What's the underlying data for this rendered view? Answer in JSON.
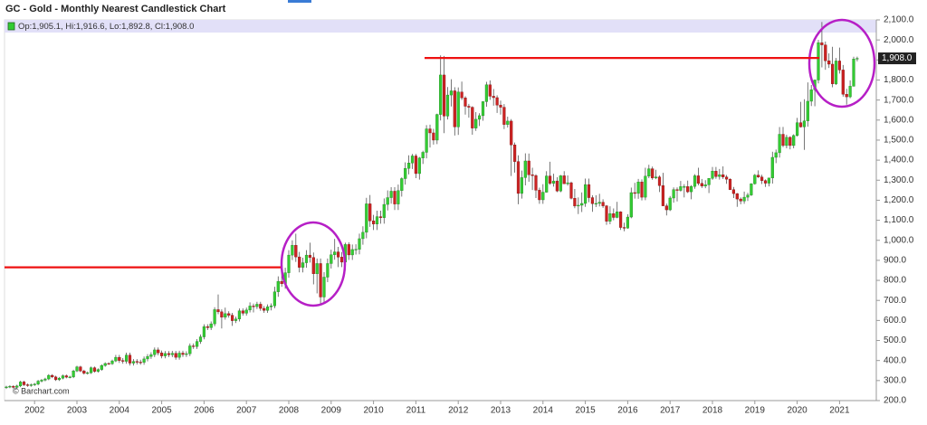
{
  "chart_data": {
    "type": "candlestick",
    "title": "GC - Gold - Monthly Nearest Candlestick Chart",
    "legend_text": "Op:1,905.1, Hi:1,916.6, Lo:1,892.8, Cl:1,908.0",
    "source": "© Barchart.com",
    "up_color": "#33cc33",
    "down_color": "#cc2222",
    "last_price": {
      "value": 1908.0,
      "label": "1,908.0"
    },
    "reference_lines": [
      {
        "value": 865,
        "color": "#ee1111"
      },
      {
        "value": 1910,
        "color": "#ee1111"
      }
    ],
    "ylim": [
      200,
      2100
    ],
    "yticks": [
      {
        "value": 2100,
        "label": "2,100.0"
      },
      {
        "value": 2000,
        "label": "2,000.0"
      },
      {
        "value": 1900,
        "label": "1,900.0"
      },
      {
        "value": 1800,
        "label": "1,800.0"
      },
      {
        "value": 1700,
        "label": "1,700.0"
      },
      {
        "value": 1600,
        "label": "1,600.0"
      },
      {
        "value": 1500,
        "label": "1,500.0"
      },
      {
        "value": 1400,
        "label": "1,400.0"
      },
      {
        "value": 1300,
        "label": "1,300.0"
      },
      {
        "value": 1200,
        "label": "1,200.0"
      },
      {
        "value": 1100,
        "label": "1,100.0"
      },
      {
        "value": 1000,
        "label": "1,000.0"
      },
      {
        "value": 900,
        "label": "900.0"
      },
      {
        "value": 800,
        "label": "800.0"
      },
      {
        "value": 700,
        "label": "700.0"
      },
      {
        "value": 600,
        "label": "600.0"
      },
      {
        "value": 500,
        "label": "500.0"
      },
      {
        "value": 400,
        "label": "400.0"
      },
      {
        "value": 300,
        "label": "300.0"
      },
      {
        "value": 200,
        "label": "200.0"
      }
    ],
    "categories": [
      null,
      null,
      null,
      null,
      null,
      null,
      null,
      null,
      "2002",
      null,
      null,
      null,
      null,
      null,
      null,
      null,
      null,
      null,
      null,
      null,
      "2003",
      null,
      null,
      null,
      null,
      null,
      null,
      null,
      null,
      null,
      null,
      null,
      "2004",
      null,
      null,
      null,
      null,
      null,
      null,
      null,
      null,
      null,
      null,
      null,
      "2005",
      null,
      null,
      null,
      null,
      null,
      null,
      null,
      null,
      null,
      null,
      null,
      "2006",
      null,
      null,
      null,
      null,
      null,
      null,
      null,
      null,
      null,
      null,
      null,
      "2007",
      null,
      null,
      null,
      null,
      null,
      null,
      null,
      null,
      null,
      null,
      null,
      "2008",
      null,
      null,
      null,
      null,
      null,
      null,
      null,
      null,
      null,
      null,
      null,
      "2009",
      null,
      null,
      null,
      null,
      null,
      null,
      null,
      null,
      null,
      null,
      null,
      "2010",
      null,
      null,
      null,
      null,
      null,
      null,
      null,
      null,
      null,
      null,
      null,
      "2011",
      null,
      null,
      null,
      null,
      null,
      null,
      null,
      null,
      null,
      null,
      null,
      "2012",
      null,
      null,
      null,
      null,
      null,
      null,
      null,
      null,
      null,
      null,
      null,
      "2013",
      null,
      null,
      null,
      null,
      null,
      null,
      null,
      null,
      null,
      null,
      null,
      "2014",
      null,
      null,
      null,
      null,
      null,
      null,
      null,
      null,
      null,
      null,
      null,
      "2015",
      null,
      null,
      null,
      null,
      null,
      null,
      null,
      null,
      null,
      null,
      null,
      "2016",
      null,
      null,
      null,
      null,
      null,
      null,
      null,
      null,
      null,
      null,
      null,
      "2017",
      null,
      null,
      null,
      null,
      null,
      null,
      null,
      null,
      null,
      null,
      null,
      "2018",
      null,
      null,
      null,
      null,
      null,
      null,
      null,
      null,
      null,
      null,
      null,
      "2019",
      null,
      null,
      null,
      null,
      null,
      null,
      null,
      null,
      null,
      null,
      null,
      "2020",
      null,
      null,
      null,
      null,
      null,
      null,
      null,
      null,
      null,
      null,
      null,
      "2021",
      null,
      null,
      null,
      null,
      null
    ],
    "open": [
      264,
      268,
      271,
      266,
      273,
      293,
      279,
      275,
      279,
      282,
      297,
      302,
      308,
      326,
      318,
      304,
      312,
      324,
      317,
      318,
      348,
      368,
      348,
      336,
      339,
      364,
      346,
      355,
      375,
      385,
      384,
      398,
      416,
      400,
      396,
      427,
      387,
      395,
      392,
      391,
      408,
      420,
      429,
      453,
      438,
      423,
      435,
      429,
      436,
      416,
      437,
      430,
      434,
      473,
      470,
      495,
      518,
      569,
      564,
      583,
      654,
      643,
      616,
      634,
      626,
      599,
      607,
      648,
      636,
      652,
      672,
      669,
      681,
      660,
      650,
      668,
      673,
      743,
      795,
      783,
      838,
      926,
      975,
      917,
      865,
      888,
      926,
      914,
      833,
      884,
      717,
      816,
      884,
      928,
      942,
      916,
      891,
      979,
      927,
      954,
      955,
      1008,
      1040,
      1182,
      1097,
      1081,
      1118,
      1113,
      1179,
      1213,
      1245,
      1181,
      1248,
      1308,
      1359,
      1386,
      1421,
      1333,
      1411,
      1439,
      1556,
      1536,
      1500,
      1628,
      1825,
      1620,
      1725,
      1746,
      1566,
      1740,
      1711,
      1669,
      1664,
      1560,
      1604,
      1622,
      1692,
      1776,
      1719,
      1712,
      1675,
      1664,
      1578,
      1595,
      1476,
      1393,
      1234,
      1313,
      1396,
      1327,
      1323,
      1250,
      1202,
      1240,
      1321,
      1284,
      1296,
      1246,
      1322,
      1282,
      1287,
      1210,
      1171,
      1175,
      1184,
      1278,
      1213,
      1183,
      1184,
      1190,
      1172,
      1095,
      1133,
      1114,
      1142,
      1064,
      1061,
      1116,
      1238,
      1234,
      1291,
      1215,
      1320,
      1357,
      1311,
      1316,
      1273,
      1172,
      1152,
      1211,
      1253,
      1249,
      1268,
      1268,
      1242,
      1269,
      1322,
      1284,
      1271,
      1277,
      1309,
      1345,
      1318,
      1327,
      1316,
      1305,
      1253,
      1233,
      1206,
      1196,
      1215,
      1226,
      1282,
      1325,
      1316,
      1298,
      1285,
      1311,
      1414,
      1437,
      1529,
      1473,
      1514,
      1473,
      1523,
      1587,
      1566,
      1596,
      1694,
      1751,
      1800,
      1986,
      1975,
      1896,
      1879,
      1781,
      1895,
      1850,
      1729,
      1716,
      1769,
      1905.1
    ],
    "high": [
      274,
      277,
      277,
      279,
      299,
      299,
      285,
      285,
      288,
      303,
      308,
      314,
      332,
      332,
      324,
      318,
      330,
      330,
      324,
      354,
      374,
      374,
      354,
      345,
      370,
      370,
      361,
      381,
      391,
      391,
      404,
      428,
      428,
      412,
      439,
      439,
      407,
      407,
      404,
      420,
      432,
      441,
      465,
      465,
      450,
      447,
      447,
      448,
      448,
      449,
      449,
      446,
      485,
      485,
      507,
      530,
      581,
      581,
      595,
      666,
      730,
      655,
      664,
      646,
      638,
      619,
      660,
      660,
      664,
      690,
      684,
      693,
      693,
      672,
      680,
      685,
      768,
      820,
      845,
      863,
      951,
      1000,
      1033,
      942,
      913,
      951,
      988,
      939,
      909,
      909,
      841,
      909,
      953,
      1007,
      967,
      941,
      988,
      990,
      979,
      980,
      1033,
      1070,
      1212,
      1226,
      1127,
      1148,
      1148,
      1209,
      1249,
      1265,
      1265,
      1278,
      1314,
      1389,
      1424,
      1431,
      1431,
      1416,
      1447,
      1575,
      1577,
      1556,
      1632,
      1923,
      1920,
      1765,
      1804,
      1764,
      1763,
      1792,
      1719,
      1681,
      1669,
      1640,
      1634,
      1694,
      1791,
      1798,
      1755,
      1724,
      1697,
      1680,
      1617,
      1605,
      1488,
      1424,
      1348,
      1434,
      1433,
      1362,
      1330,
      1263,
      1280,
      1345,
      1392,
      1332,
      1315,
      1326,
      1345,
      1324,
      1293,
      1256,
      1214,
      1239,
      1308,
      1308,
      1225,
      1225,
      1232,
      1205,
      1176,
      1170,
      1159,
      1192,
      1145,
      1088,
      1130,
      1263,
      1287,
      1306,
      1304,
      1362,
      1377,
      1368,
      1352,
      1324,
      1337,
      1183,
      1221,
      1264,
      1264,
      1296,
      1280,
      1298,
      1275,
      1330,
      1362,
      1306,
      1300,
      1310,
      1366,
      1366,
      1356,
      1369,
      1326,
      1309,
      1266,
      1236,
      1214,
      1243,
      1237,
      1285,
      1331,
      1349,
      1327,
      1304,
      1312,
      1442,
      1453,
      1565,
      1566,
      1527,
      1519,
      1529,
      1611,
      1691,
      1704,
      1788,
      1775,
      1802,
      2000,
      2089,
      1992,
      1933,
      1966,
      1910,
      1962,
      1875,
      1756,
      1798,
      1916,
      1916.6
    ],
    "low": [
      258,
      262,
      260,
      260,
      267,
      273,
      269,
      269,
      273,
      276,
      291,
      296,
      302,
      312,
      298,
      298,
      306,
      311,
      311,
      312,
      342,
      342,
      330,
      330,
      333,
      340,
      340,
      349,
      369,
      378,
      378,
      392,
      388,
      384,
      384,
      375,
      375,
      380,
      379,
      379,
      396,
      408,
      417,
      426,
      411,
      411,
      417,
      417,
      404,
      404,
      418,
      418,
      422,
      458,
      458,
      483,
      506,
      552,
      552,
      571,
      631,
      560,
      604,
      614,
      573,
      587,
      595,
      624,
      624,
      640,
      640,
      657,
      648,
      638,
      638,
      650,
      661,
      718,
      768,
      758,
      813,
      901,
      892,
      840,
      840,
      863,
      889,
      780,
      735,
      681,
      692,
      791,
      859,
      903,
      866,
      866,
      866,
      902,
      902,
      929,
      930,
      978,
      1010,
      1067,
      1051,
      1051,
      1083,
      1083,
      1149,
      1183,
      1151,
      1151,
      1218,
      1278,
      1329,
      1356,
      1310,
      1303,
      1381,
      1409,
      1463,
      1478,
      1480,
      1598,
      1535,
      1603,
      1668,
      1523,
      1526,
      1700,
      1627,
      1612,
      1527,
      1546,
      1570,
      1597,
      1667,
      1701,
      1672,
      1636,
      1627,
      1555,
      1563,
      1321,
      1338,
      1180,
      1208,
      1274,
      1292,
      1251,
      1211,
      1182,
      1182,
      1238,
      1277,
      1268,
      1240,
      1240,
      1281,
      1273,
      1204,
      1160,
      1131,
      1141,
      1167,
      1190,
      1142,
      1166,
      1169,
      1162,
      1077,
      1080,
      1100,
      1110,
      1052,
      1045,
      1058,
      1110,
      1208,
      1207,
      1199,
      1200,
      1310,
      1302,
      1305,
      1241,
      1171,
      1124,
      1146,
      1188,
      1194,
      1243,
      1214,
      1236,
      1205,
      1257,
      1274,
      1261,
      1260,
      1236,
      1302,
      1307,
      1303,
      1306,
      1282,
      1251,
      1211,
      1167,
      1180,
      1182,
      1196,
      1221,
      1278,
      1311,
      1281,
      1266,
      1269,
      1283,
      1385,
      1413,
      1465,
      1459,
      1454,
      1459,
      1518,
      1563,
      1451,
      1567,
      1670,
      1669,
      1783,
      1863,
      1851,
      1860,
      1764,
      1775,
      1832,
      1717,
      1677,
      1709,
      1767,
      1892.8
    ],
    "close": [
      268,
      271,
      266,
      273,
      293,
      279,
      275,
      279,
      282,
      297,
      302,
      308,
      326,
      318,
      304,
      312,
      324,
      317,
      318,
      348,
      368,
      348,
      336,
      339,
      364,
      346,
      355,
      375,
      385,
      384,
      398,
      416,
      400,
      396,
      427,
      387,
      395,
      392,
      391,
      408,
      420,
      429,
      453,
      438,
      423,
      435,
      429,
      436,
      416,
      437,
      430,
      434,
      473,
      470,
      495,
      518,
      569,
      564,
      583,
      654,
      643,
      616,
      634,
      626,
      599,
      607,
      648,
      636,
      652,
      672,
      669,
      681,
      660,
      650,
      668,
      673,
      743,
      795,
      783,
      838,
      926,
      975,
      917,
      865,
      888,
      926,
      914,
      833,
      884,
      717,
      816,
      884,
      928,
      942,
      916,
      891,
      979,
      927,
      954,
      955,
      1008,
      1040,
      1182,
      1097,
      1081,
      1118,
      1113,
      1179,
      1213,
      1245,
      1181,
      1248,
      1308,
      1359,
      1386,
      1421,
      1333,
      1411,
      1439,
      1556,
      1536,
      1500,
      1628,
      1825,
      1620,
      1725,
      1746,
      1566,
      1740,
      1711,
      1669,
      1664,
      1560,
      1604,
      1622,
      1692,
      1776,
      1719,
      1712,
      1675,
      1664,
      1578,
      1595,
      1476,
      1393,
      1234,
      1313,
      1396,
      1327,
      1323,
      1250,
      1202,
      1240,
      1321,
      1284,
      1296,
      1246,
      1322,
      1282,
      1287,
      1210,
      1171,
      1175,
      1184,
      1278,
      1213,
      1183,
      1184,
      1190,
      1172,
      1095,
      1133,
      1114,
      1142,
      1064,
      1061,
      1116,
      1238,
      1234,
      1291,
      1215,
      1320,
      1357,
      1311,
      1316,
      1273,
      1172,
      1152,
      1211,
      1253,
      1249,
      1268,
      1268,
      1242,
      1269,
      1322,
      1284,
      1271,
      1277,
      1309,
      1345,
      1318,
      1327,
      1316,
      1305,
      1253,
      1233,
      1206,
      1196,
      1215,
      1226,
      1282,
      1325,
      1316,
      1298,
      1285,
      1311,
      1414,
      1437,
      1529,
      1473,
      1514,
      1473,
      1523,
      1587,
      1566,
      1596,
      1694,
      1751,
      1800,
      1986,
      1975,
      1896,
      1879,
      1781,
      1895,
      1850,
      1729,
      1716,
      1769,
      1905,
      1908.0
    ]
  }
}
